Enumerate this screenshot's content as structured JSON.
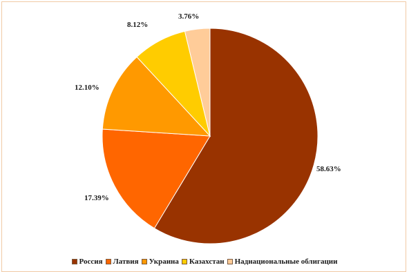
{
  "chart_data": {
    "type": "pie",
    "title": "",
    "categories": [
      "Россия",
      "Латвия",
      "Украина",
      "Казахстан",
      "Наднациональные облигации"
    ],
    "values": [
      58.63,
      17.39,
      12.1,
      8.12,
      3.76
    ],
    "labels": [
      "58.63%",
      "17.39%",
      "12.10%",
      "8.12%",
      "3.76%"
    ],
    "colors": [
      "#993300",
      "#ff6600",
      "#ff9900",
      "#ffcc00",
      "#ffcc99"
    ],
    "legend_position": "bottom",
    "start_angle": "top, clockwise"
  }
}
